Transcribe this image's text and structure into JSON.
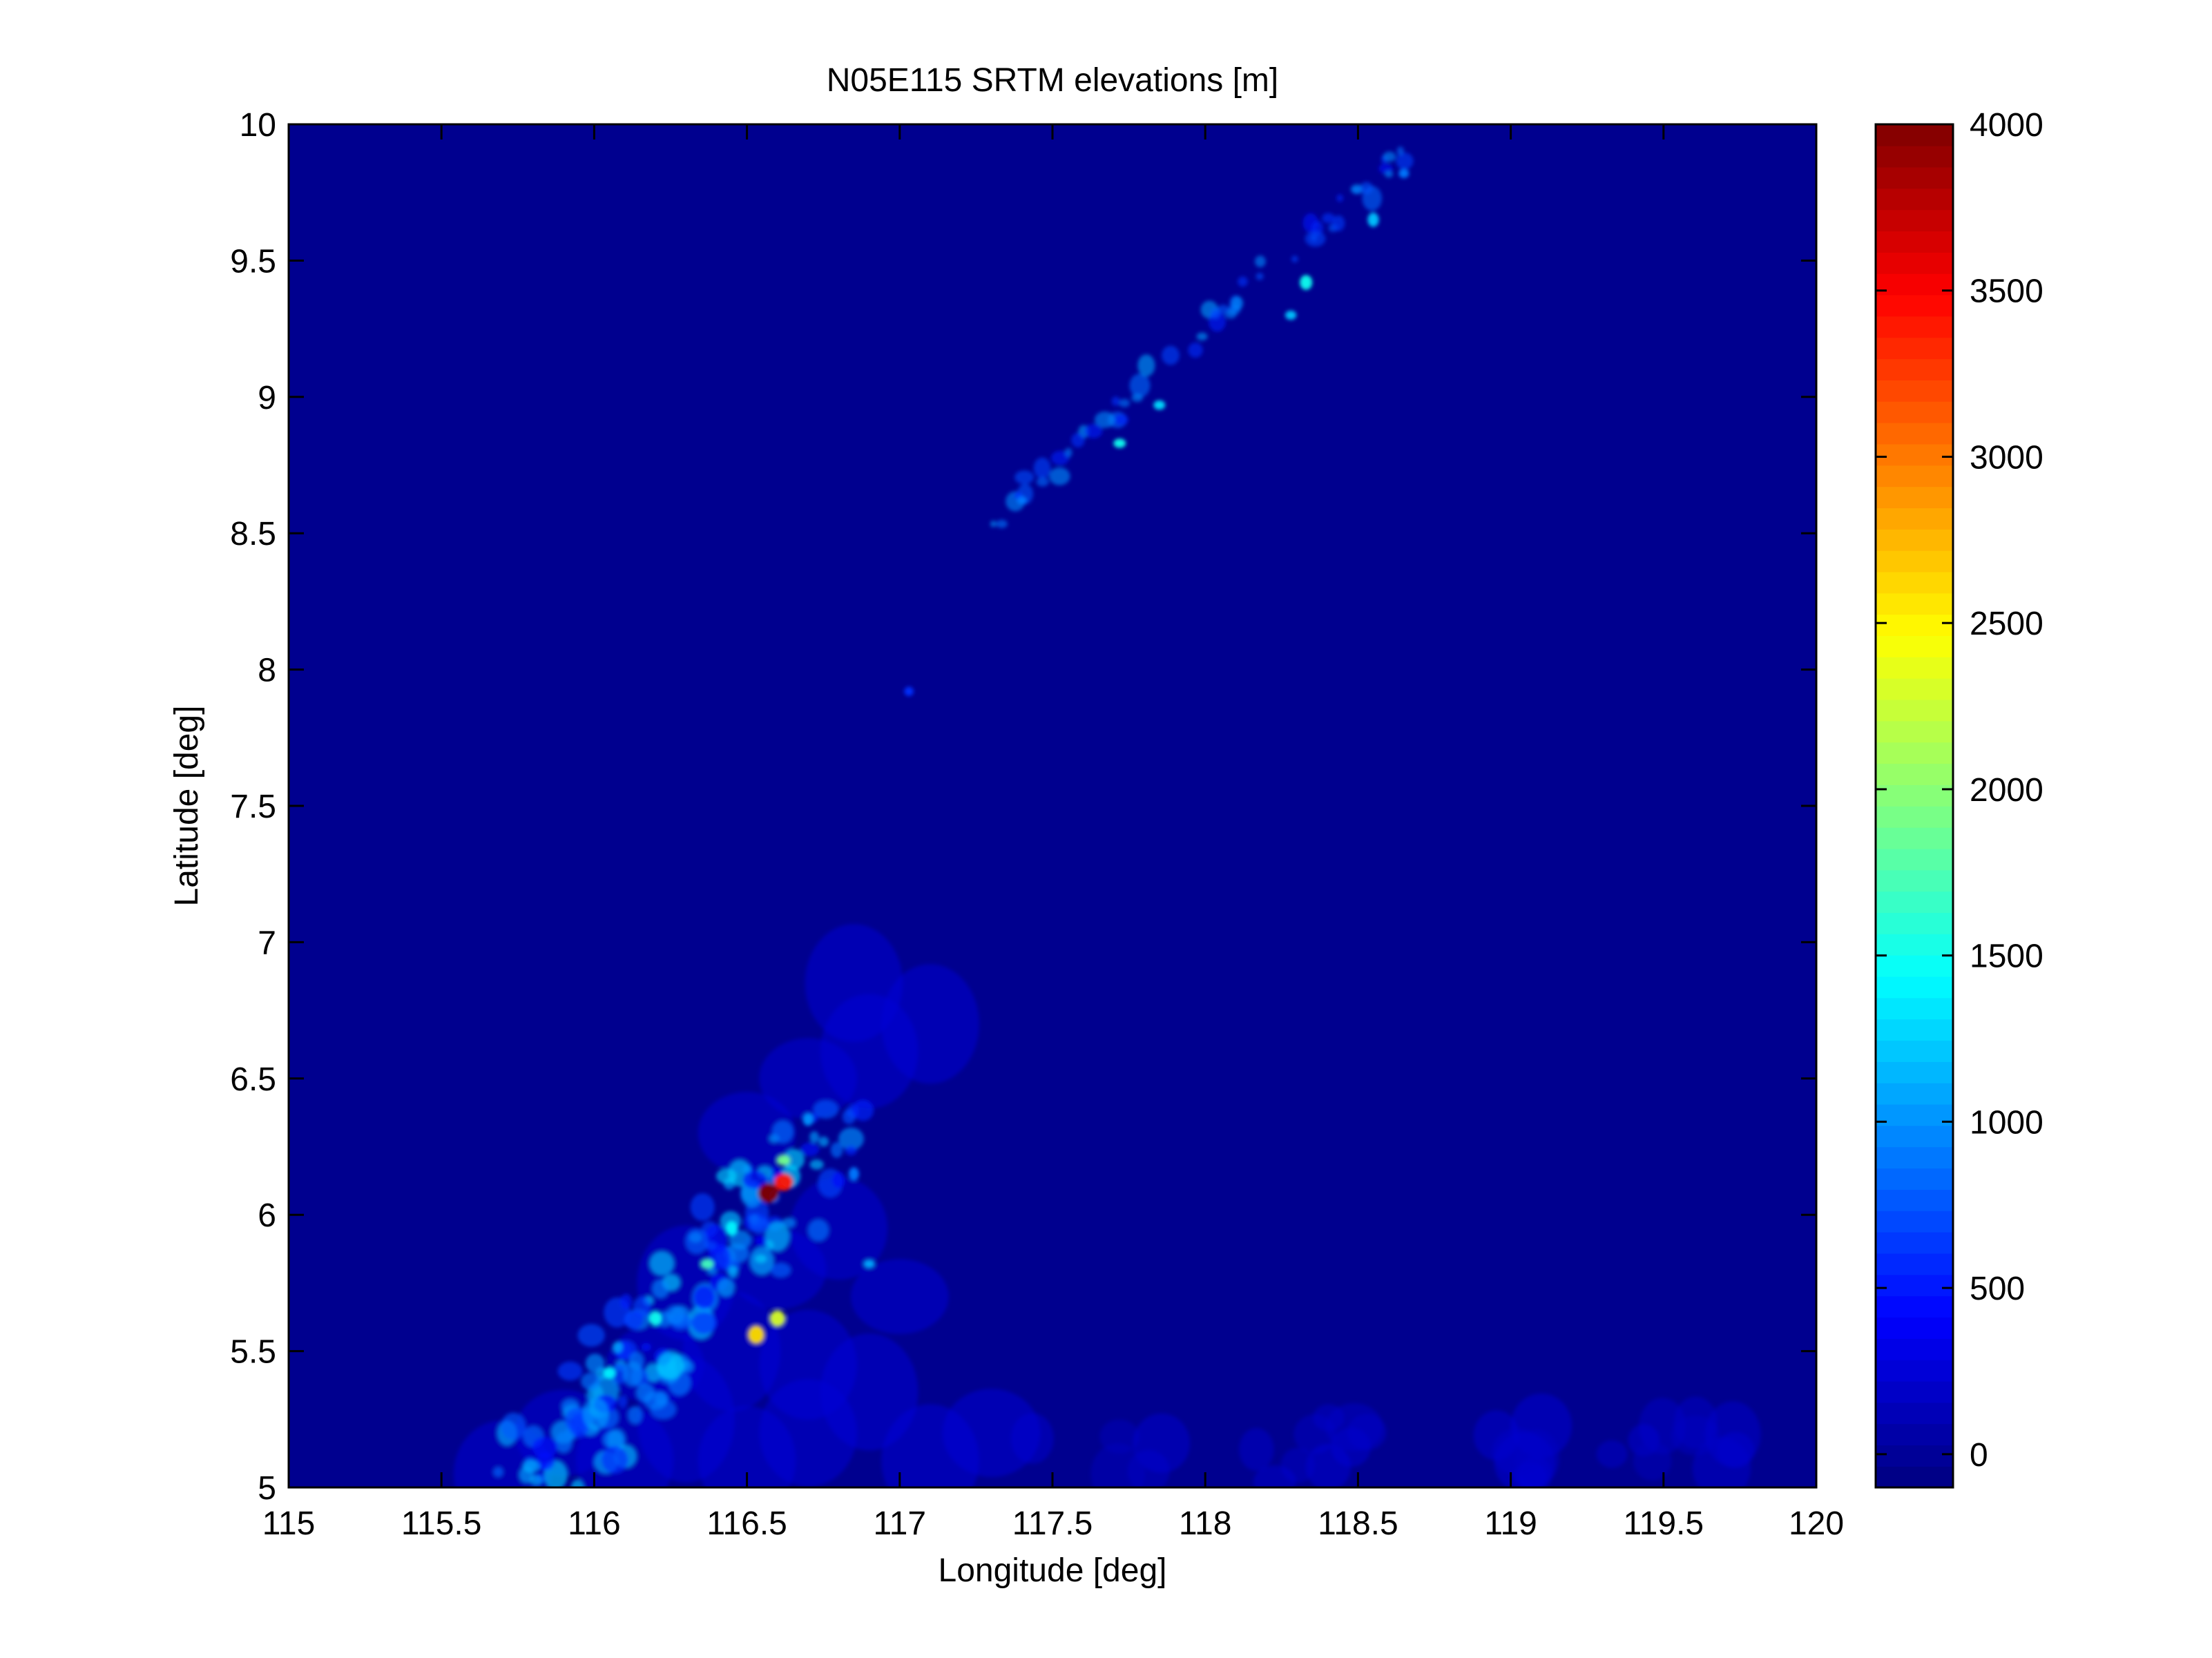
{
  "chart_data": {
    "type": "heatmap",
    "title": "N05E115 SRTM elevations [m]",
    "xlabel": "Longitude [deg]",
    "ylabel": "Latitude [deg]",
    "xlim": [
      115,
      120
    ],
    "ylim": [
      5,
      10
    ],
    "x_ticks": [
      "115",
      "115.5",
      "116",
      "116.5",
      "117",
      "117.5",
      "118",
      "118.5",
      "119",
      "119.5",
      "120"
    ],
    "x_tick_values": [
      115,
      115.5,
      116,
      116.5,
      117,
      117.5,
      118,
      118.5,
      119,
      119.5,
      120
    ],
    "y_ticks": [
      "5",
      "5.5",
      "6",
      "6.5",
      "7",
      "7.5",
      "8",
      "8.5",
      "9",
      "9.5",
      "10"
    ],
    "y_tick_values": [
      5,
      5.5,
      6,
      6.5,
      7,
      7.5,
      8,
      8.5,
      9,
      9.5,
      10
    ],
    "colorbar": {
      "colormap": "jet",
      "clim": [
        -100,
        4000
      ],
      "ticks": [
        "0",
        "500",
        "1000",
        "1500",
        "2000",
        "2500",
        "3000",
        "3500",
        "4000"
      ],
      "tick_values": [
        0,
        500,
        1000,
        1500,
        2000,
        2500,
        3000,
        3500,
        4000
      ]
    },
    "grid": false,
    "background_value": 0,
    "features": [
      {
        "lon": 116.57,
        "lat": 6.08,
        "elevation": 4000
      },
      {
        "lon": 116.62,
        "lat": 6.12,
        "elevation": 3400
      },
      {
        "lon": 116.53,
        "lat": 5.56,
        "elevation": 2600
      },
      {
        "lon": 116.6,
        "lat": 5.62,
        "elevation": 2300
      },
      {
        "lon": 116.62,
        "lat": 6.2,
        "elevation": 1900
      },
      {
        "lon": 116.37,
        "lat": 5.82,
        "elevation": 1700
      },
      {
        "lon": 116.05,
        "lat": 5.42,
        "elevation": 1400
      },
      {
        "lon": 116.2,
        "lat": 5.62,
        "elevation": 1500
      },
      {
        "lon": 116.45,
        "lat": 5.95,
        "elevation": 1400
      },
      {
        "lon": 116.9,
        "lat": 5.82,
        "elevation": 1100
      },
      {
        "lon": 116.7,
        "lat": 6.35,
        "elevation": 1000
      },
      {
        "lon": 116.85,
        "lat": 6.15,
        "elevation": 900
      },
      {
        "lon": 117.72,
        "lat": 8.83,
        "elevation": 1500
      },
      {
        "lon": 117.85,
        "lat": 8.97,
        "elevation": 1300
      },
      {
        "lon": 118.33,
        "lat": 9.42,
        "elevation": 1500
      },
      {
        "lon": 118.28,
        "lat": 9.3,
        "elevation": 1200
      },
      {
        "lon": 118.55,
        "lat": 9.65,
        "elevation": 1200
      },
      {
        "lon": 118.65,
        "lat": 9.82,
        "elevation": 900
      },
      {
        "lon": 117.4,
        "lat": 8.62,
        "elevation": 900
      },
      {
        "lon": 117.03,
        "lat": 7.92,
        "elevation": 600
      }
    ]
  }
}
